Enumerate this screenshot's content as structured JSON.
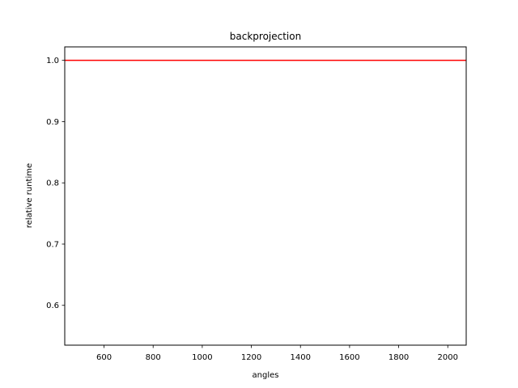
{
  "chart_data": {
    "type": "line",
    "title": "backprojection",
    "xlabel": "angles",
    "ylabel": "relative runtime",
    "xlim": [
      440,
      2075
    ],
    "ylim": [
      0.535,
      1.022
    ],
    "xticks": [
      600,
      800,
      1000,
      1200,
      1400,
      1600,
      1800,
      2000
    ],
    "xtick_labels": [
      "600",
      "800",
      "1000",
      "1200",
      "1400",
      "1600",
      "1800",
      "2000"
    ],
    "yticks": [
      0.6,
      0.7,
      0.8,
      0.9,
      1.0
    ],
    "ytick_labels": [
      "0.6",
      "0.7",
      "0.8",
      "0.9",
      "1.0"
    ],
    "grid": false,
    "series": [
      {
        "color": "#ff0000",
        "x": [
          440,
          2075
        ],
        "y": [
          1.0,
          1.0
        ]
      }
    ]
  }
}
